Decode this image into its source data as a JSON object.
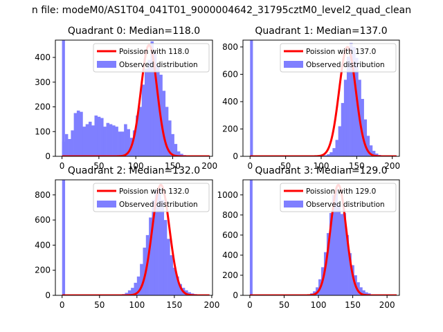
{
  "figure": {
    "suptitle": "n file: modeM0/AS1T04_041T01_9000004642_31795cztM0_level2_quad_clean"
  },
  "chart_data": [
    {
      "type": "bar",
      "title": "Quadrant 0: Median=118.0",
      "xlim": [
        -9,
        204
      ],
      "ylim": [
        0,
        470
      ],
      "xticks": [
        0,
        50,
        100,
        150,
        200
      ],
      "yticks": [
        0,
        100,
        200,
        300,
        400
      ],
      "legend": {
        "position": "top-right",
        "fit_label": "Poission with 118.0",
        "obs_label": "Observed distribution"
      },
      "spike": {
        "x": 0,
        "width": 4,
        "value": 470
      },
      "hist": {
        "start": 0,
        "bin_width": 4,
        "values": [
          60,
          90,
          70,
          105,
          175,
          185,
          180,
          120,
          130,
          140,
          125,
          165,
          160,
          155,
          120,
          135,
          130,
          125,
          120,
          100,
          100,
          130,
          110,
          75,
          105,
          165,
          200,
          290,
          355,
          390,
          465,
          420,
          365,
          330,
          265,
          200,
          145,
          90,
          50,
          20,
          10,
          5,
          3,
          2,
          1,
          0,
          0,
          0,
          0
        ]
      },
      "fit": {
        "peak": 450,
        "mean": 118,
        "sigma": 10.9
      }
    },
    {
      "type": "bar",
      "title": "Quadrant 1: Median=137.0",
      "xlim": [
        -10,
        210
      ],
      "ylim": [
        0,
        850
      ],
      "xticks": [
        0,
        50,
        100,
        150,
        200
      ],
      "yticks": [
        0,
        200,
        400,
        600,
        800
      ],
      "legend": {
        "position": "top-right",
        "fit_label": "Poission with 137.0",
        "obs_label": "Observed distribution"
      },
      "spike": {
        "x": 0,
        "width": 4,
        "value": 850
      },
      "hist": {
        "start": 100,
        "bin_width": 4,
        "values": [
          3,
          8,
          15,
          30,
          60,
          120,
          220,
          390,
          560,
          730,
          830,
          800,
          720,
          560,
          420,
          270,
          150,
          80,
          40,
          20,
          10,
          5
        ]
      },
      "fit": {
        "peak": 800,
        "mean": 137,
        "sigma": 11.7
      }
    },
    {
      "type": "bar",
      "title": "Quadrant 2: Median=132.0",
      "xlim": [
        -9,
        201
      ],
      "ylim": [
        0,
        920
      ],
      "xticks": [
        0,
        50,
        100,
        150,
        200
      ],
      "yticks": [
        0,
        200,
        400,
        600,
        800
      ],
      "legend": {
        "position": "top-right",
        "fit_label": "Poission with 132.0",
        "obs_label": "Observed distribution"
      },
      "spike": {
        "x": 0,
        "width": 4,
        "value": 920
      },
      "hist": {
        "start": 76,
        "bin_width": 4,
        "values": [
          5,
          10,
          20,
          40,
          60,
          100,
          150,
          250,
          380,
          480,
          620,
          760,
          840,
          860,
          760,
          600,
          450,
          320,
          220,
          150,
          90,
          60,
          40,
          25,
          15,
          10,
          5,
          3,
          2,
          1
        ]
      },
      "fit": {
        "peak": 880,
        "mean": 132,
        "sigma": 11.5
      }
    },
    {
      "type": "bar",
      "title": "Quadrant 3: Median=129.0",
      "xlim": [
        -10,
        218
      ],
      "ylim": [
        0,
        1150
      ],
      "xticks": [
        0,
        50,
        100,
        150,
        200
      ],
      "yticks": [
        0,
        200,
        400,
        600,
        800,
        1000
      ],
      "legend": {
        "position": "top-right",
        "fit_label": "Poission with 129.0",
        "obs_label": "Observed distribution"
      },
      "spike": {
        "x": 0,
        "width": 4,
        "value": 1150
      },
      "hist": {
        "start": 80,
        "bin_width": 4,
        "values": [
          5,
          10,
          20,
          40,
          80,
          160,
          280,
          430,
          620,
          820,
          1000,
          1050,
          900,
          810,
          820,
          600,
          420,
          300,
          200,
          130,
          80,
          50,
          30,
          20,
          10,
          5,
          3,
          2,
          1
        ]
      },
      "fit": {
        "peak": 1100,
        "mean": 129,
        "sigma": 11.4
      }
    }
  ],
  "colors": {
    "histogram": "#7f7fff",
    "fit_line": "#ff0000",
    "axes": "#000000",
    "background": "#ffffff"
  }
}
